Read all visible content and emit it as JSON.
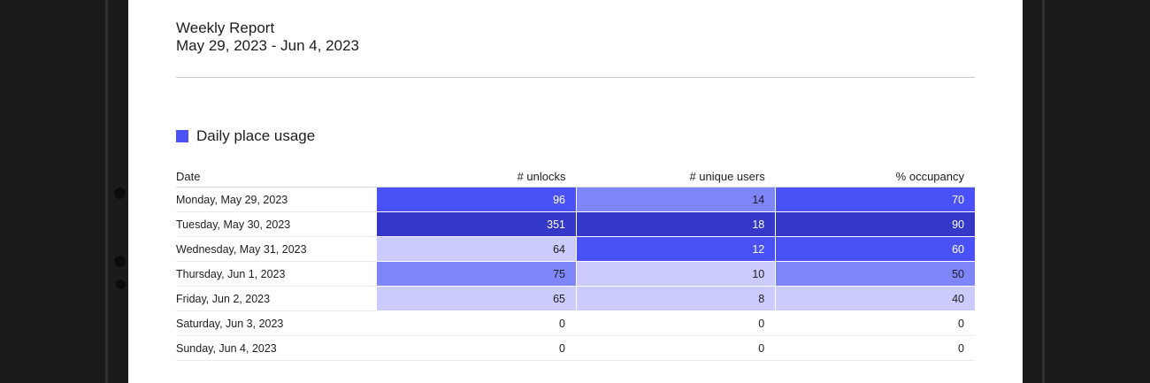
{
  "report": {
    "title": "Weekly Report",
    "range": "May 29, 2023 - Jun 4, 2023"
  },
  "section": {
    "label": "Daily place usage",
    "legend_color": "#4a52f7"
  },
  "table": {
    "columns": [
      "Date",
      "# unlocks",
      "# unique users",
      "% occupancy"
    ],
    "rows": [
      {
        "date": "Monday, May 29, 2023",
        "unlocks": "96",
        "unique_users": "14",
        "occupancy": "70"
      },
      {
        "date": "Tuesday, May 30, 2023",
        "unlocks": "351",
        "unique_users": "18",
        "occupancy": "90"
      },
      {
        "date": "Wednesday, May 31, 2023",
        "unlocks": "64",
        "unique_users": "12",
        "occupancy": "60"
      },
      {
        "date": "Thursday, Jun 1, 2023",
        "unlocks": "75",
        "unique_users": "10",
        "occupancy": "50"
      },
      {
        "date": "Friday, Jun 2, 2023",
        "unlocks": "65",
        "unique_users": "8",
        "occupancy": "40"
      },
      {
        "date": "Saturday, Jun 3, 2023",
        "unlocks": "0",
        "unique_users": "0",
        "occupancy": "0"
      },
      {
        "date": "Sunday, Jun 4, 2023",
        "unlocks": "0",
        "unique_users": "0",
        "occupancy": "0"
      }
    ],
    "cell_colors": [
      [
        "#4a52f7",
        "#7e86fa",
        "#4a52f7"
      ],
      [
        "#3338c8",
        "#3338c8",
        "#3338c8"
      ],
      [
        "#cbcbfd",
        "#4a52f7",
        "#4a52f7"
      ],
      [
        "#7e86fa",
        "#cbcbfd",
        "#7e86fa"
      ],
      [
        "#cbcbfd",
        "#cbcbfd",
        "#cbcbfd"
      ],
      [
        "#ffffff",
        "#ffffff",
        "#ffffff"
      ],
      [
        "#ffffff",
        "#ffffff",
        "#ffffff"
      ]
    ],
    "text_colors": [
      [
        "#ffffff",
        "#1d1d1f",
        "#ffffff"
      ],
      [
        "#ffffff",
        "#ffffff",
        "#ffffff"
      ],
      [
        "#1d1d1f",
        "#ffffff",
        "#ffffff"
      ],
      [
        "#1d1d1f",
        "#1d1d1f",
        "#1d1d1f"
      ],
      [
        "#1d1d1f",
        "#1d1d1f",
        "#1d1d1f"
      ],
      [
        "#1d1d1f",
        "#1d1d1f",
        "#1d1d1f"
      ],
      [
        "#1d1d1f",
        "#1d1d1f",
        "#1d1d1f"
      ]
    ]
  }
}
